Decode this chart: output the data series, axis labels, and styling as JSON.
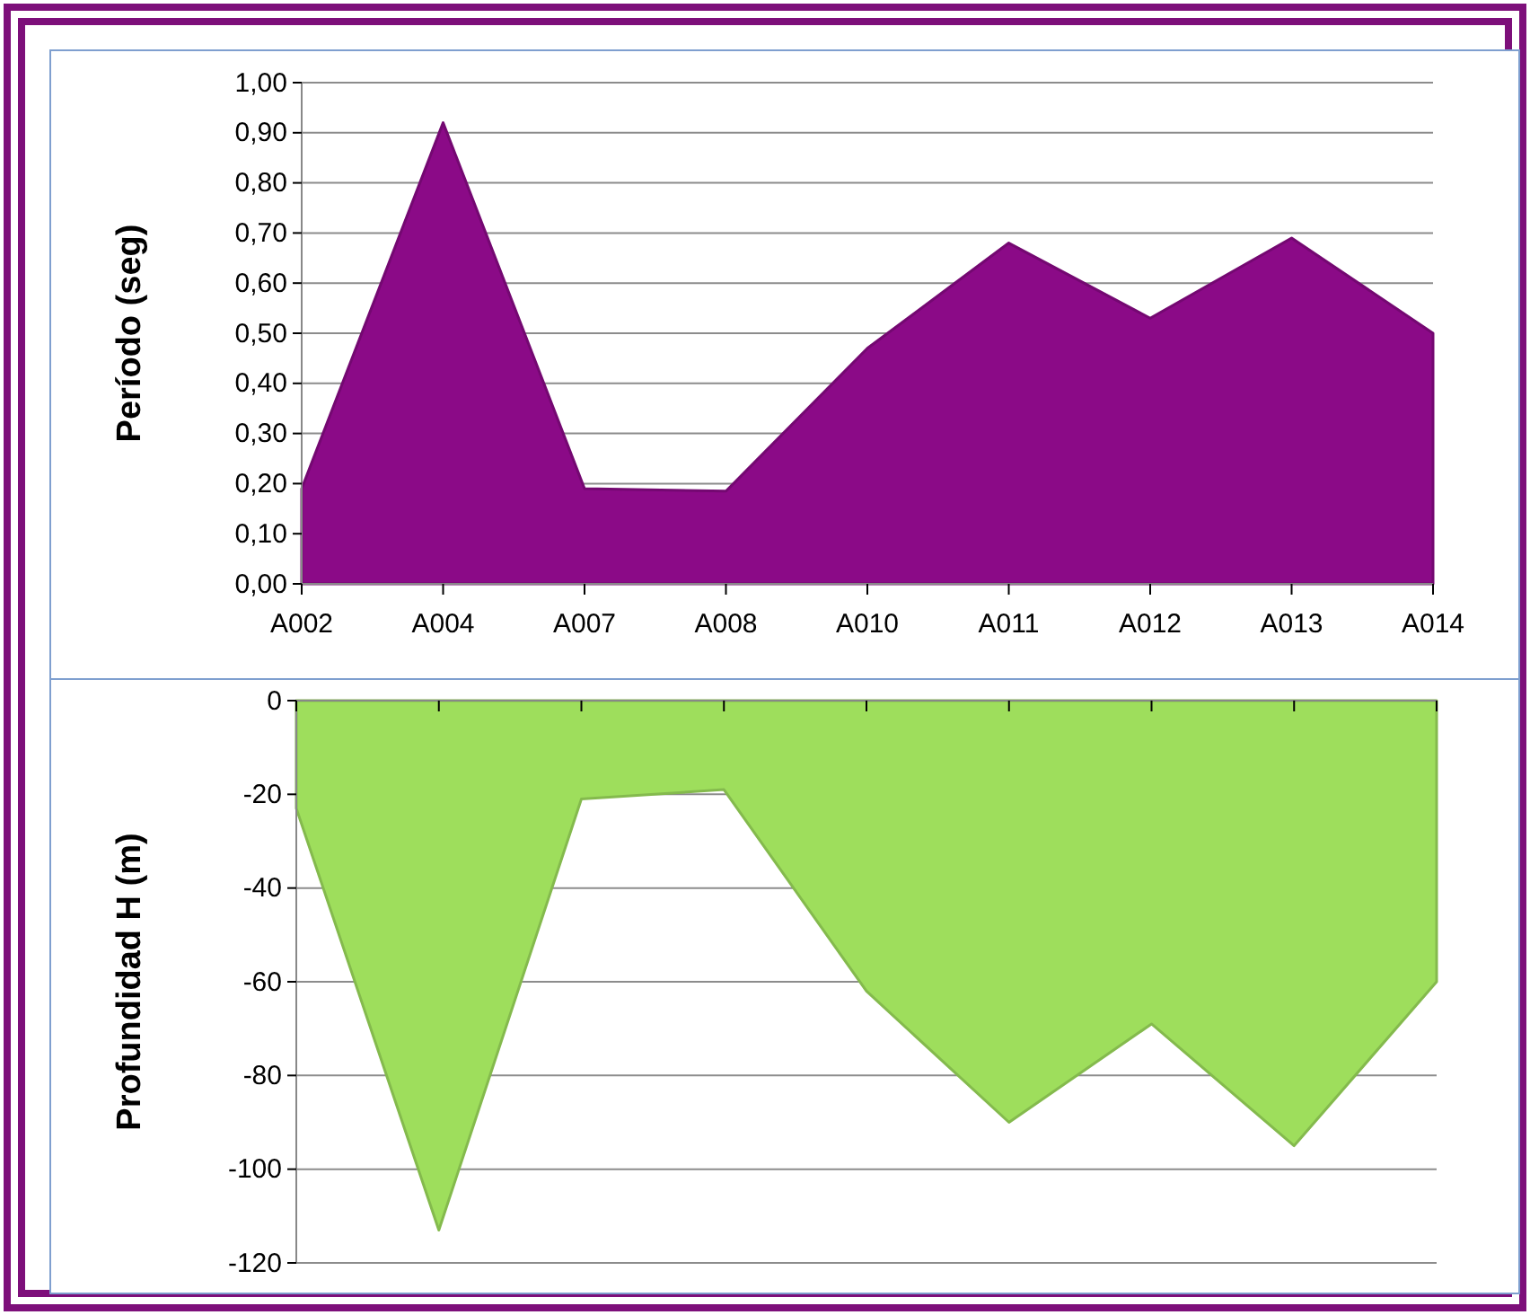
{
  "chart_data": [
    {
      "type": "area",
      "categories": [
        "A002",
        "A004",
        "A007",
        "A008",
        "A010",
        "A011",
        "A012",
        "A013",
        "A014"
      ],
      "ylabel": "Período (seg)",
      "series": [
        {
          "color": "#8b0a87",
          "values": [
            0.19,
            0.92,
            0.19,
            0.185,
            0.47,
            0.68,
            0.53,
            0.69,
            0.5
          ]
        }
      ],
      "ylim": [
        0,
        1
      ],
      "yticks": [
        {
          "value": 0,
          "label": "0,00"
        },
        {
          "value": 0.1,
          "label": "0,10"
        },
        {
          "value": 0.2,
          "label": "0,20"
        },
        {
          "value": 0.3,
          "label": "0,30"
        },
        {
          "value": 0.4,
          "label": "0,40"
        },
        {
          "value": 0.5,
          "label": "0,50"
        },
        {
          "value": 0.6,
          "label": "0,60"
        },
        {
          "value": 0.7,
          "label": "0,70"
        },
        {
          "value": 0.8,
          "label": "0,80"
        },
        {
          "value": 0.9,
          "label": "0,90"
        },
        {
          "value": 1,
          "label": "1,00"
        }
      ],
      "grid": true
    },
    {
      "type": "area",
      "categories": [
        null,
        null,
        null,
        null,
        null,
        null,
        null,
        null,
        null
      ],
      "ylabel": "Profundidad H (m)",
      "series": [
        {
          "color": "#9ede5c",
          "values": [
            -23,
            -113,
            -21,
            -19,
            -62,
            -90,
            -69,
            -95,
            -60
          ]
        }
      ],
      "ylim": [
        -120,
        0
      ],
      "yticks": [
        0,
        -20,
        -40,
        -60,
        -80,
        -100,
        -120
      ],
      "grid": true,
      "tick_labels": "y"
    }
  ]
}
